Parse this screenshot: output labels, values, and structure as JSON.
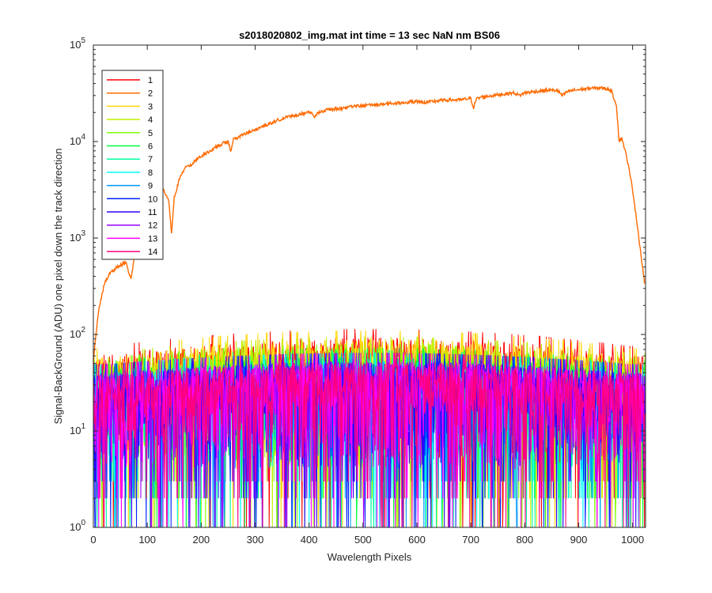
{
  "chart_data": {
    "type": "line",
    "title": "s2018020802_img.mat int time = 13 sec  NaN nm BS06",
    "xlabel": "Wavelength Pixels",
    "ylabel": "Signal-BackGround (ADU) one pixel down the track direction",
    "xlim": [
      0,
      1024
    ],
    "ylim": [
      1,
      100000
    ],
    "yscale": "log",
    "x_ticks": [
      "0",
      "100",
      "200",
      "300",
      "400",
      "500",
      "600",
      "700",
      "800",
      "900",
      "1000"
    ],
    "x_tick_values": [
      0,
      100,
      200,
      300,
      400,
      500,
      600,
      700,
      800,
      900,
      1000
    ],
    "y_tick_values": [
      1,
      10,
      100,
      1000,
      10000,
      100000
    ],
    "y_tick_base": "10",
    "y_tick_exponents": [
      "0",
      "1",
      "2",
      "3",
      "4",
      "5"
    ],
    "grid": false,
    "legend_placement": "top-left",
    "series": [
      {
        "name": "1",
        "color": "#ff0000",
        "level": [
          40,
          60
        ]
      },
      {
        "name": "2",
        "color": "#ff6a00",
        "profile": [
          [
            0,
            55
          ],
          [
            10,
            180
          ],
          [
            20,
            330
          ],
          [
            30,
            420
          ],
          [
            40,
            480
          ],
          [
            50,
            520
          ],
          [
            60,
            560
          ],
          [
            70,
            370
          ],
          [
            80,
            900
          ],
          [
            90,
            1400
          ],
          [
            100,
            2000
          ],
          [
            110,
            2600
          ],
          [
            120,
            3000
          ],
          [
            130,
            3200
          ],
          [
            140,
            2400
          ],
          [
            145,
            1100
          ],
          [
            150,
            2600
          ],
          [
            160,
            4200
          ],
          [
            170,
            5300
          ],
          [
            180,
            5700
          ],
          [
            190,
            6500
          ],
          [
            200,
            7100
          ],
          [
            210,
            7600
          ],
          [
            220,
            8200
          ],
          [
            230,
            8900
          ],
          [
            240,
            9600
          ],
          [
            250,
            10000
          ],
          [
            255,
            7800
          ],
          [
            260,
            10500
          ],
          [
            270,
            11200
          ],
          [
            280,
            12000
          ],
          [
            290,
            12400
          ],
          [
            300,
            13200
          ],
          [
            320,
            14800
          ],
          [
            340,
            16500
          ],
          [
            360,
            18000
          ],
          [
            380,
            19000
          ],
          [
            400,
            20500
          ],
          [
            410,
            18000
          ],
          [
            420,
            20500
          ],
          [
            440,
            21500
          ],
          [
            460,
            22000
          ],
          [
            480,
            23000
          ],
          [
            500,
            23500
          ],
          [
            520,
            24000
          ],
          [
            540,
            24500
          ],
          [
            560,
            25000
          ],
          [
            580,
            25500
          ],
          [
            600,
            26000
          ],
          [
            620,
            25500
          ],
          [
            640,
            26500
          ],
          [
            660,
            27000
          ],
          [
            680,
            27000
          ],
          [
            700,
            28000
          ],
          [
            705,
            22500
          ],
          [
            710,
            27500
          ],
          [
            720,
            29000
          ],
          [
            740,
            30000
          ],
          [
            760,
            31000
          ],
          [
            780,
            32000
          ],
          [
            790,
            30000
          ],
          [
            800,
            32000
          ],
          [
            820,
            33000
          ],
          [
            840,
            34000
          ],
          [
            860,
            34000
          ],
          [
            870,
            30000
          ],
          [
            880,
            33000
          ],
          [
            890,
            34000
          ],
          [
            900,
            34500
          ],
          [
            920,
            35500
          ],
          [
            940,
            36000
          ],
          [
            950,
            35500
          ],
          [
            960,
            34000
          ],
          [
            970,
            24000
          ],
          [
            975,
            10000
          ],
          [
            980,
            11000
          ],
          [
            985,
            8500
          ],
          [
            990,
            6500
          ],
          [
            1000,
            3200
          ],
          [
            1010,
            1200
          ],
          [
            1020,
            420
          ],
          [
            1024,
            300
          ]
        ]
      },
      {
        "name": "3",
        "color": "#ffd700",
        "level": [
          38,
          58
        ]
      },
      {
        "name": "4",
        "color": "#c0f000",
        "level": [
          34,
          50
        ]
      },
      {
        "name": "5",
        "color": "#7fff00",
        "level": [
          30,
          42
        ]
      },
      {
        "name": "6",
        "color": "#00ff40",
        "level": [
          28,
          38
        ]
      },
      {
        "name": "7",
        "color": "#00ff9f",
        "level": [
          26,
          36
        ]
      },
      {
        "name": "8",
        "color": "#00ffff",
        "level": [
          26,
          34
        ]
      },
      {
        "name": "9",
        "color": "#0099ff",
        "level": [
          26,
          34
        ]
      },
      {
        "name": "10",
        "color": "#0022ff",
        "level": [
          26,
          34
        ]
      },
      {
        "name": "11",
        "color": "#3300ff",
        "level": [
          26,
          34
        ]
      },
      {
        "name": "12",
        "color": "#9900ff",
        "level": [
          26,
          34
        ]
      },
      {
        "name": "13",
        "color": "#ff00ff",
        "level": [
          26,
          34
        ]
      },
      {
        "name": "14",
        "color": "#ff007f",
        "level": [
          26,
          34
        ]
      }
    ]
  }
}
